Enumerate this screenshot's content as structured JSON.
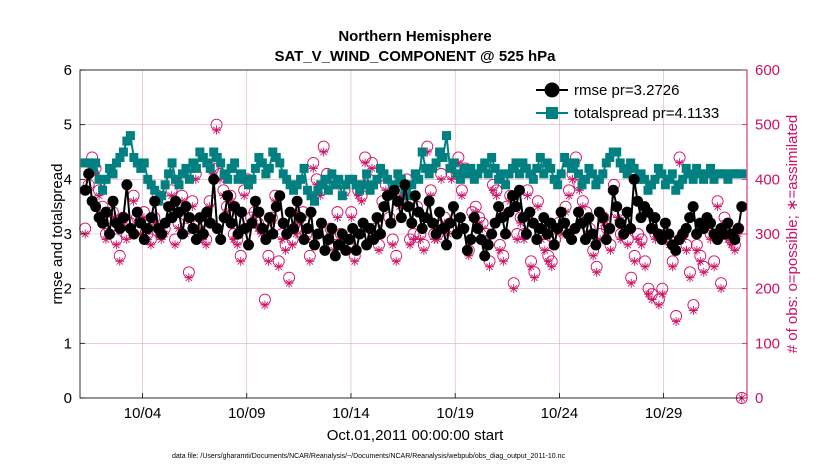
{
  "chart_data": {
    "type": "line",
    "title": "Northern Hemisphere",
    "subtitle": "SAT_V_WIND_COMPONENT @ 525 hPa",
    "xlabel": "Oct.01,2011 00:00:00 start",
    "ylabel_left": "rmse and totalspread",
    "ylabel_right": "# of obs: o=possible; ∗=assimilated",
    "footnote": "data file: /Users/gharamti/Documents/NCAR/Reanalysis/~/Documents/NCAR/Reanalysis/webpub/obs_diag_output_2011-10.nc",
    "x_ticks": [
      {
        "day": 4,
        "label": "10/04"
      },
      {
        "day": 9,
        "label": "10/09"
      },
      {
        "day": 14,
        "label": "10/14"
      },
      {
        "day": 19,
        "label": "10/19"
      },
      {
        "day": 24,
        "label": "10/24"
      },
      {
        "day": 29,
        "label": "10/29"
      }
    ],
    "xlim": [
      1.0,
      33.0
    ],
    "ylim_left": [
      0,
      6
    ],
    "ylim_right": [
      0,
      600
    ],
    "yticks_left": [
      "0",
      "1",
      "2",
      "3",
      "4",
      "5",
      "6"
    ],
    "yticks_right": [
      "0",
      "100",
      "200",
      "300",
      "400",
      "500",
      "600"
    ],
    "grid": true,
    "legend_position": "top-right",
    "colors": {
      "rmse": "#000000",
      "totalspread": "#008080",
      "obs": "#cc1166",
      "grid": "#e0b0b0"
    },
    "series": [
      {
        "name": "rmse pr=3.2726",
        "axis": "left",
        "marker": "circle",
        "values": [
          3.8,
          4.1,
          3.6,
          3.5,
          3.3,
          3.2,
          3.4,
          3.0,
          3.6,
          3.2,
          3.1,
          3.3,
          3.9,
          3.1,
          3.0,
          3.4,
          3.2,
          2.9,
          3.1,
          3.3,
          3.6,
          3.1,
          3.0,
          3.2,
          3.5,
          3.3,
          3.6,
          3.4,
          3.0,
          3.5,
          3.3,
          3.1,
          2.9,
          3.3,
          3.0,
          3.4,
          3.2,
          4.0,
          3.1,
          2.9,
          3.3,
          3.7,
          3.2,
          3.5,
          3.0,
          3.4,
          3.1,
          2.8,
          3.2,
          3.6,
          3.4,
          3.1,
          2.9,
          3.3,
          3.0,
          3.5,
          3.7,
          3.2,
          3.0,
          3.4,
          3.1,
          3.6,
          3.3,
          2.9,
          3.1,
          3.4,
          2.8,
          3.0,
          3.2,
          2.7,
          2.9,
          3.1,
          2.6,
          2.8,
          3.0,
          2.7,
          2.9,
          3.1,
          2.7,
          3.0,
          3.2,
          2.8,
          3.1,
          2.9,
          3.3,
          3.0,
          3.5,
          3.7,
          3.2,
          3.8,
          3.6,
          3.3,
          3.9,
          3.5,
          3.2,
          3.7,
          3.4,
          3.1,
          3.3,
          3.6,
          3.2,
          3.0,
          3.4,
          3.1,
          2.8,
          3.2,
          3.5,
          3.0,
          3.3,
          3.1,
          2.7,
          2.9,
          3.3,
          3.1,
          2.9,
          2.6,
          2.8,
          3.0,
          3.2,
          3.5,
          3.3,
          3.0,
          3.4,
          3.7,
          3.5,
          3.8,
          3.3,
          3.0,
          3.4,
          3.2,
          2.9,
          3.1,
          3.3,
          3.0,
          3.2,
          2.8,
          3.1,
          3.4,
          3.2,
          3.0,
          2.9,
          3.1,
          3.4,
          3.2,
          2.9,
          3.3,
          3.0,
          2.8,
          3.4,
          3.3,
          2.9,
          3.1,
          3.8,
          3.5,
          3.2,
          3.0,
          3.4,
          3.1,
          4.0,
          3.6,
          3.3,
          3.5,
          3.4,
          3.1,
          3.3,
          3.0,
          2.9,
          3.2,
          3.0,
          2.8,
          2.7,
          2.9,
          3.0,
          3.1,
          3.3,
          3.5,
          3.0,
          3.2,
          3.1,
          3.3,
          3.2,
          3.0,
          2.9,
          3.1,
          3.0,
          3.2,
          3.0,
          2.9,
          3.1,
          3.5
        ]
      },
      {
        "name": "totalspread pr=4.1133",
        "axis": "left",
        "marker": "square",
        "values": [
          4.3,
          4.3,
          4.2,
          4.3,
          4.0,
          3.8,
          4.0,
          4.2,
          4.1,
          4.3,
          4.4,
          4.5,
          4.7,
          4.8,
          4.4,
          4.3,
          4.2,
          4.3,
          4.0,
          3.9,
          3.8,
          3.6,
          3.7,
          3.9,
          4.1,
          4.3,
          4.0,
          3.9,
          4.1,
          4.2,
          4.0,
          4.3,
          4.2,
          4.5,
          4.4,
          4.3,
          4.2,
          4.5,
          4.4,
          4.3,
          4.1,
          4.0,
          4.2,
          4.3,
          4.0,
          4.1,
          4.0,
          3.9,
          4.0,
          4.2,
          4.4,
          4.3,
          4.1,
          4.2,
          4.5,
          4.4,
          4.3,
          4.1,
          4.0,
          3.9,
          3.8,
          3.9,
          4.0,
          4.2,
          3.8,
          3.7,
          3.6,
          3.8,
          3.9,
          4.0,
          3.8,
          4.1,
          3.9,
          4.0,
          3.7,
          3.9,
          4.0,
          4.0,
          3.9,
          3.8,
          3.9,
          4.1,
          3.8,
          3.9,
          4.0,
          4.2,
          4.1,
          4.0,
          3.7,
          3.9,
          4.1,
          4.0,
          3.8,
          3.7,
          3.9,
          4.1,
          4.0,
          4.5,
          4.2,
          4.1,
          4.2,
          4.3,
          4.5,
          4.4,
          4.8,
          4.2,
          4.3,
          4.1,
          4.0,
          4.2,
          4.1,
          4.2,
          4.0,
          4.1,
          4.2,
          4.3,
          4.1,
          4.4,
          4.2,
          4.0,
          4.1,
          3.9,
          4.1,
          4.2,
          4.3,
          4.1,
          4.3,
          4.2,
          4.1,
          4.0,
          4.2,
          4.4,
          4.1,
          4.3,
          4.2,
          4.0,
          3.9,
          4.1,
          4.4,
          4.3,
          4.2,
          4.3,
          4.1,
          3.9,
          4.0,
          4.2,
          4.1,
          3.9,
          4.0,
          4.1,
          4.3,
          4.4,
          4.5,
          4.5,
          4.3,
          4.2,
          4.1,
          4.3,
          4.2,
          4.0,
          4.1,
          4.0,
          3.8,
          3.9,
          4.0,
          4.2,
          4.1,
          3.9,
          4.0,
          4.1,
          3.8,
          3.9,
          4.0,
          4.2,
          4.1,
          4.0,
          4.2,
          4.1,
          4.0,
          4.1,
          4.2,
          4.0,
          4.1,
          4.1,
          4.1,
          4.0,
          4.1,
          4.1,
          4.1,
          4.1
        ]
      },
      {
        "name": "obs possible",
        "axis": "right",
        "marker": "open-circle",
        "values": [
          310,
          390,
          440,
          420,
          380,
          350,
          300,
          310,
          340,
          290,
          260,
          330,
          300,
          320,
          370,
          330,
          310,
          340,
          300,
          290,
          330,
          370,
          300,
          310,
          360,
          380,
          290,
          320,
          370,
          310,
          230,
          360,
          410,
          320,
          300,
          290,
          360,
          420,
          500,
          410,
          380,
          350,
          370,
          300,
          290,
          260,
          380,
          400,
          330,
          340,
          320,
          310,
          180,
          260,
          330,
          370,
          250,
          300,
          280,
          220,
          290,
          310,
          330,
          340,
          300,
          260,
          430,
          400,
          380,
          460,
          410,
          310,
          280,
          340,
          300,
          380,
          280,
          340,
          260,
          380,
          370,
          440,
          400,
          430,
          310,
          280,
          360,
          390,
          330,
          290,
          260,
          360,
          380,
          400,
          290,
          300,
          350,
          300,
          280,
          460,
          380,
          300,
          300,
          410,
          330,
          310,
          410,
          420,
          440,
          380,
          420,
          270,
          340,
          350,
          330,
          320,
          300,
          250,
          390,
          380,
          280,
          260,
          350,
          370,
          210,
          300,
          330,
          300,
          380,
          250,
          230,
          360,
          300,
          280,
          260,
          250,
          290,
          320,
          310,
          350,
          380,
          410,
          440,
          390,
          360,
          340,
          310,
          270,
          240,
          300,
          330,
          310,
          280,
          390,
          340,
          300,
          320,
          290,
          220,
          260,
          300,
          290,
          250,
          200,
          190,
          300,
          180,
          200,
          300,
          290,
          250,
          150,
          440,
          300,
          280,
          230,
          170,
          280,
          260,
          240,
          320,
          300,
          250,
          360,
          210,
          330,
          300,
          290,
          280,
          310,
          0
        ]
      },
      {
        "name": "obs assimilated",
        "axis": "right",
        "marker": "asterisk",
        "values": [
          300,
          380,
          430,
          410,
          370,
          340,
          290,
          300,
          330,
          280,
          250,
          320,
          290,
          310,
          360,
          320,
          300,
          330,
          290,
          280,
          320,
          360,
          290,
          300,
          350,
          370,
          280,
          310,
          360,
          300,
          220,
          350,
          400,
          310,
          290,
          280,
          350,
          410,
          490,
          400,
          370,
          340,
          360,
          290,
          280,
          250,
          370,
          390,
          320,
          330,
          310,
          300,
          170,
          250,
          320,
          360,
          240,
          290,
          270,
          210,
          280,
          300,
          320,
          330,
          290,
          250,
          420,
          390,
          370,
          450,
          400,
          300,
          270,
          330,
          290,
          370,
          270,
          330,
          250,
          370,
          360,
          430,
          390,
          420,
          300,
          270,
          350,
          380,
          320,
          280,
          250,
          350,
          370,
          390,
          280,
          290,
          340,
          290,
          270,
          450,
          370,
          290,
          290,
          400,
          320,
          300,
          400,
          410,
          430,
          370,
          410,
          260,
          330,
          340,
          320,
          310,
          290,
          240,
          380,
          370,
          270,
          250,
          340,
          360,
          200,
          290,
          320,
          290,
          370,
          240,
          220,
          350,
          290,
          270,
          250,
          240,
          280,
          310,
          300,
          340,
          370,
          400,
          430,
          380,
          350,
          330,
          300,
          260,
          230,
          290,
          320,
          300,
          270,
          380,
          330,
          290,
          310,
          280,
          210,
          250,
          290,
          280,
          240,
          190,
          180,
          290,
          170,
          190,
          290,
          280,
          240,
          140,
          430,
          290,
          270,
          220,
          160,
          270,
          250,
          230,
          310,
          290,
          240,
          350,
          200,
          320,
          290,
          280,
          270,
          300,
          0
        ]
      }
    ]
  }
}
